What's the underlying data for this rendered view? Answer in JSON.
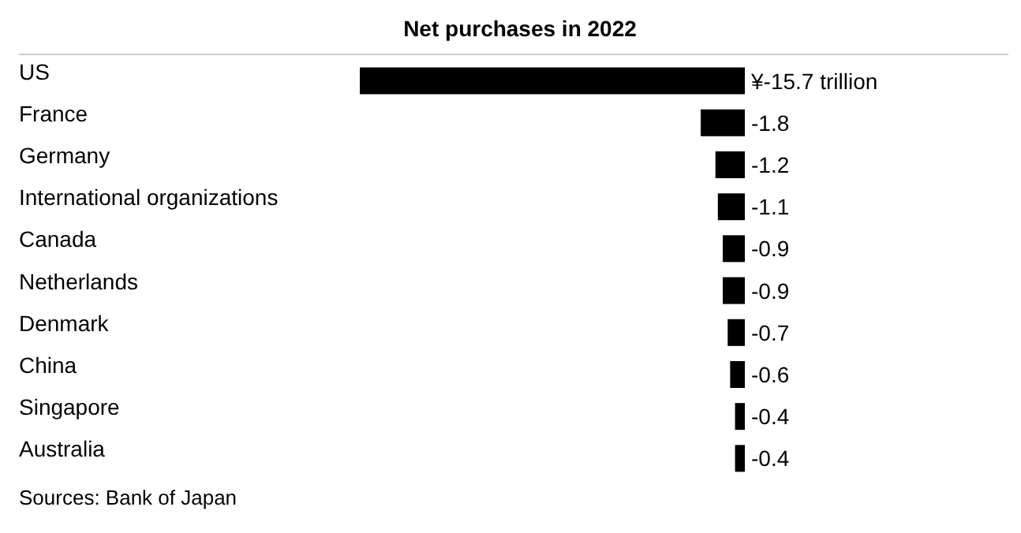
{
  "chart_data": {
    "type": "bar",
    "orientation": "horizontal",
    "title": "Net purchases in 2022",
    "categories": [
      "US",
      "France",
      "Germany",
      "International organizations",
      "Canada",
      "Netherlands",
      "Denmark",
      "China",
      "Singapore",
      "Australia"
    ],
    "values": [
      -15.7,
      -1.8,
      -1.2,
      -1.1,
      -0.9,
      -0.9,
      -0.7,
      -0.6,
      -0.4,
      -0.4
    ],
    "value_labels": [
      "¥-15.7 trillion",
      "-1.8",
      "-1.2",
      "-1.1",
      "-0.9",
      "-0.9",
      "-0.7",
      "-0.6",
      "-0.4",
      "-0.4"
    ],
    "color": "#000000",
    "xlim": [
      -15.7,
      0
    ],
    "tick_labels": "y",
    "grid": false,
    "annotations": [
      "Sources: Bank of Japan"
    ]
  }
}
